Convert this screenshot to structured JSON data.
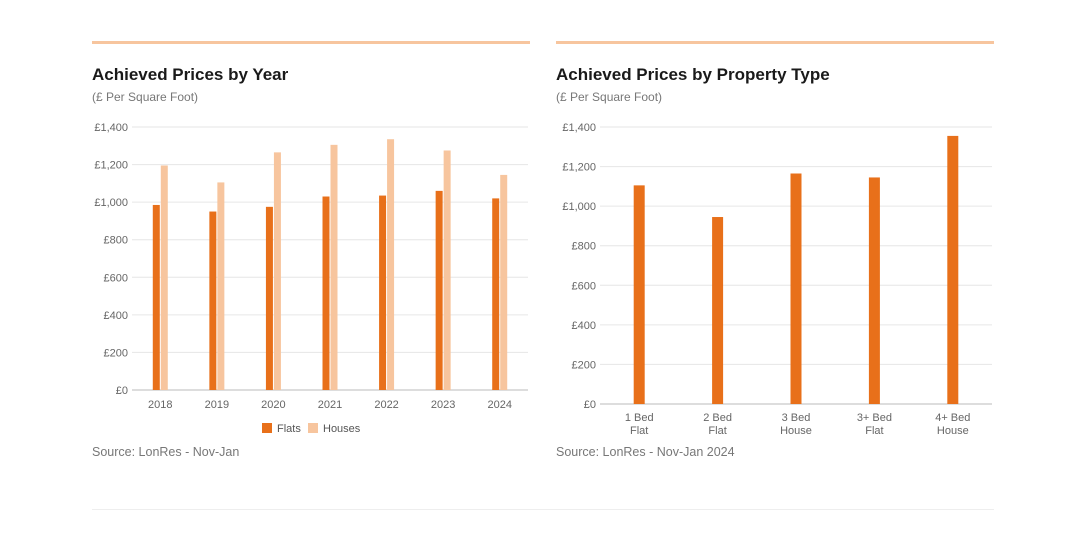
{
  "colors": {
    "flats": "#e8701a",
    "houses": "#f7c59e",
    "rule": "#f7c59e",
    "grid": "#e6e6e6"
  },
  "left": {
    "title": "Achieved Prices by Year",
    "subtitle": "(£ Per Square Foot)",
    "source": "Source: LonRes - Nov-Jan",
    "legend": {
      "flats": "Flats",
      "houses": "Houses"
    }
  },
  "right": {
    "title": "Achieved Prices by Property Type",
    "subtitle": "(£ Per Square Foot)",
    "source": "Source: LonRes - Nov-Jan 2024"
  },
  "chart_data": [
    {
      "type": "bar",
      "title": "Achieved Prices by Year",
      "subtitle": "(£ Per Square Foot)",
      "categories": [
        "2018",
        "2019",
        "2020",
        "2021",
        "2022",
        "2023",
        "2024"
      ],
      "series": [
        {
          "name": "Flats",
          "values": [
            985,
            950,
            975,
            1030,
            1035,
            1060,
            1020
          ]
        },
        {
          "name": "Houses",
          "values": [
            1195,
            1105,
            1265,
            1305,
            1335,
            1275,
            1145
          ]
        }
      ],
      "yticks": [
        "£0",
        "£200",
        "£400",
        "£600",
        "£800",
        "£1,000",
        "£1,200",
        "£1,400"
      ],
      "ylim": [
        0,
        1400
      ],
      "grid": true,
      "legend": "bottom-center"
    },
    {
      "type": "bar",
      "title": "Achieved Prices by Property Type",
      "subtitle": "(£ Per Square Foot)",
      "categories": [
        [
          "1 Bed",
          "Flat"
        ],
        [
          "2 Bed",
          "Flat"
        ],
        [
          "3 Bed",
          "House"
        ],
        [
          "3+ Bed",
          "Flat"
        ],
        [
          "4+ Bed",
          "House"
        ]
      ],
      "values": [
        1105,
        945,
        1165,
        1145,
        1355
      ],
      "yticks": [
        "£0",
        "£200",
        "£400",
        "£600",
        "£800",
        "£1,000",
        "£1,200",
        "£1,400"
      ],
      "ylim": [
        0,
        1400
      ],
      "grid": true
    }
  ]
}
